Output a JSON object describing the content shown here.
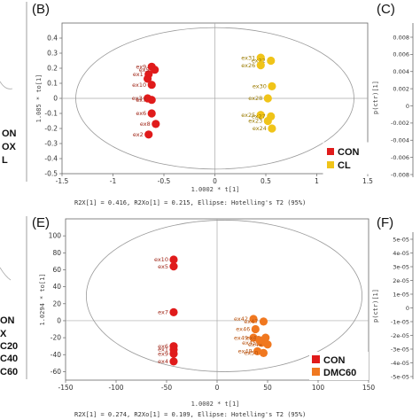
{
  "chart_data": [
    {
      "type": "scatter",
      "panel": "(B)",
      "title": "",
      "xlabel": "1.0002 * t[1]",
      "ylabel": "1.085 * to[1]",
      "caption": "R2X[1] = 0.416, R2Xo[1] = 0.215, Ellipse: Hotelling's T2 (95%)",
      "xlim": [
        -1.5,
        1.5
      ],
      "ylim": [
        -0.5,
        0.5
      ],
      "x_ticks": [
        "-1.5",
        "-1",
        "-0.5",
        "0",
        "0.5",
        "1",
        "1.5"
      ],
      "y_ticks": [
        "0.4",
        "0.3",
        "0.2",
        "0.1",
        "0",
        "-0.1",
        "-0.2",
        "-0.3",
        "-0.4",
        "-0.5"
      ],
      "x_tick_values": [
        -1.5,
        -1,
        -0.5,
        0,
        0.5,
        1,
        1.5
      ],
      "y_tick_values": [
        0.4,
        0.3,
        0.2,
        0.1,
        0,
        -0.1,
        -0.2,
        -0.3,
        -0.4,
        -0.5
      ],
      "legend": {
        "position": "bottom-right",
        "entries": [
          "CON",
          "CL"
        ]
      },
      "series": [
        {
          "name": "CON",
          "color": "#e01b1b",
          "points": [
            {
              "label": "ex9",
              "x": -0.62,
              "y": 0.21
            },
            {
              "label": "ex1",
              "x": -0.65,
              "y": 0.16
            },
            {
              "label": "ex5",
              "x": -0.59,
              "y": 0.19
            },
            {
              "label": "",
              "x": -0.66,
              "y": 0.13
            },
            {
              "label": "ex10",
              "x": -0.62,
              "y": 0.09
            },
            {
              "label": "ex3",
              "x": -0.66,
              "y": 0.0
            },
            {
              "label": "ex7",
              "x": -0.62,
              "y": -0.01
            },
            {
              "label": "ex6",
              "x": -0.62,
              "y": -0.1
            },
            {
              "label": "ex8",
              "x": -0.58,
              "y": -0.17
            },
            {
              "label": "ex2",
              "x": -0.65,
              "y": -0.24
            }
          ]
        },
        {
          "name": "CL",
          "color": "#f0c419",
          "points": [
            {
              "label": "ex31",
              "x": 0.45,
              "y": 0.27
            },
            {
              "label": "ex22",
              "x": 0.55,
              "y": 0.25
            },
            {
              "label": "ex26",
              "x": 0.45,
              "y": 0.22
            },
            {
              "label": "ex30",
              "x": 0.56,
              "y": 0.08
            },
            {
              "label": "ex28",
              "x": 0.52,
              "y": 0.0
            },
            {
              "label": "ex25",
              "x": 0.45,
              "y": -0.11
            },
            {
              "label": "ex27",
              "x": 0.55,
              "y": -0.12
            },
            {
              "label": "ex23",
              "x": 0.52,
              "y": -0.15
            },
            {
              "label": "ex24",
              "x": 0.56,
              "y": -0.2
            }
          ]
        }
      ]
    },
    {
      "type": "scatter",
      "panel": "(E)",
      "title": "",
      "xlabel": "1.0002 * t[1]",
      "ylabel": "1.0294 * to[1]",
      "caption": "R2X[1] = 0.274, R2Xo[1] = 0.109, Ellipse: Hotelling's T2 (95%)",
      "xlim": [
        -150,
        150
      ],
      "ylim": [
        -70,
        120
      ],
      "x_ticks": [
        "-150",
        "-100",
        "-50",
        "0",
        "50",
        "100",
        "150"
      ],
      "y_ticks": [
        "100",
        "80",
        "60",
        "40",
        "20",
        "0",
        "-20",
        "-40",
        "-60"
      ],
      "x_tick_values": [
        -150,
        -100,
        -50,
        0,
        50,
        100,
        150
      ],
      "y_tick_values": [
        100,
        80,
        60,
        40,
        20,
        0,
        -20,
        -40,
        -60
      ],
      "legend": {
        "position": "bottom-right",
        "entries": [
          "CON",
          "DMC60"
        ]
      },
      "series": [
        {
          "name": "CON",
          "color": "#e01b1b",
          "points": [
            {
              "label": "ex10",
              "x": -43,
              "y": 72
            },
            {
              "label": "ex5",
              "x": -43,
              "y": 64
            },
            {
              "label": "ex7",
              "x": -43,
              "y": 10
            },
            {
              "label": "ex6",
              "x": -43,
              "y": -30
            },
            {
              "label": "ex9",
              "x": -43,
              "y": -39
            },
            {
              "label": "ex1",
              "x": -43,
              "y": -34
            },
            {
              "label": "ex4",
              "x": -43,
              "y": -48
            }
          ]
        },
        {
          "name": "DMC60",
          "color": "#f07820",
          "points": [
            {
              "label": "ex42",
              "x": 36,
              "y": 2
            },
            {
              "label": "ex47",
              "x": 46,
              "y": -1
            },
            {
              "label": "ex46",
              "x": 38,
              "y": -10
            },
            {
              "label": "ex49",
              "x": 36,
              "y": -20
            },
            {
              "label": "ex43",
              "x": 48,
              "y": -20
            },
            {
              "label": "ex45",
              "x": 44,
              "y": -26
            },
            {
              "label": "ex44",
              "x": 50,
              "y": -28
            },
            {
              "label": "ex48",
              "x": 40,
              "y": -36
            },
            {
              "label": "ex50",
              "x": 46,
              "y": -38
            },
            {
              "label": "",
              "x": 42,
              "y": -23
            }
          ]
        }
      ]
    },
    {
      "type": "scatter",
      "panel": "(C)",
      "title": "",
      "ylabel": "p(ctr)[1]",
      "y_ticks": [
        "0.008",
        "0.006",
        "0.004",
        "0.002",
        "0",
        "-0.002",
        "-0.004",
        "-0.006",
        "-0.008"
      ],
      "series": []
    },
    {
      "type": "scatter",
      "panel": "(F)",
      "title": "",
      "ylabel": "p(ctr)[1]",
      "y_ticks": [
        "5e-05",
        "4e-05",
        "3e-05",
        "2e-05",
        "1e-05",
        "0",
        "-1e-05",
        "-2e-05",
        "-3e-05",
        "-4e-05",
        "-5e-05"
      ],
      "series": []
    }
  ],
  "left_fragments": {
    "top": [
      "ON",
      "OX",
      "L"
    ],
    "bottom": [
      "ON",
      "X",
      "C20",
      "C40",
      "C60"
    ]
  }
}
